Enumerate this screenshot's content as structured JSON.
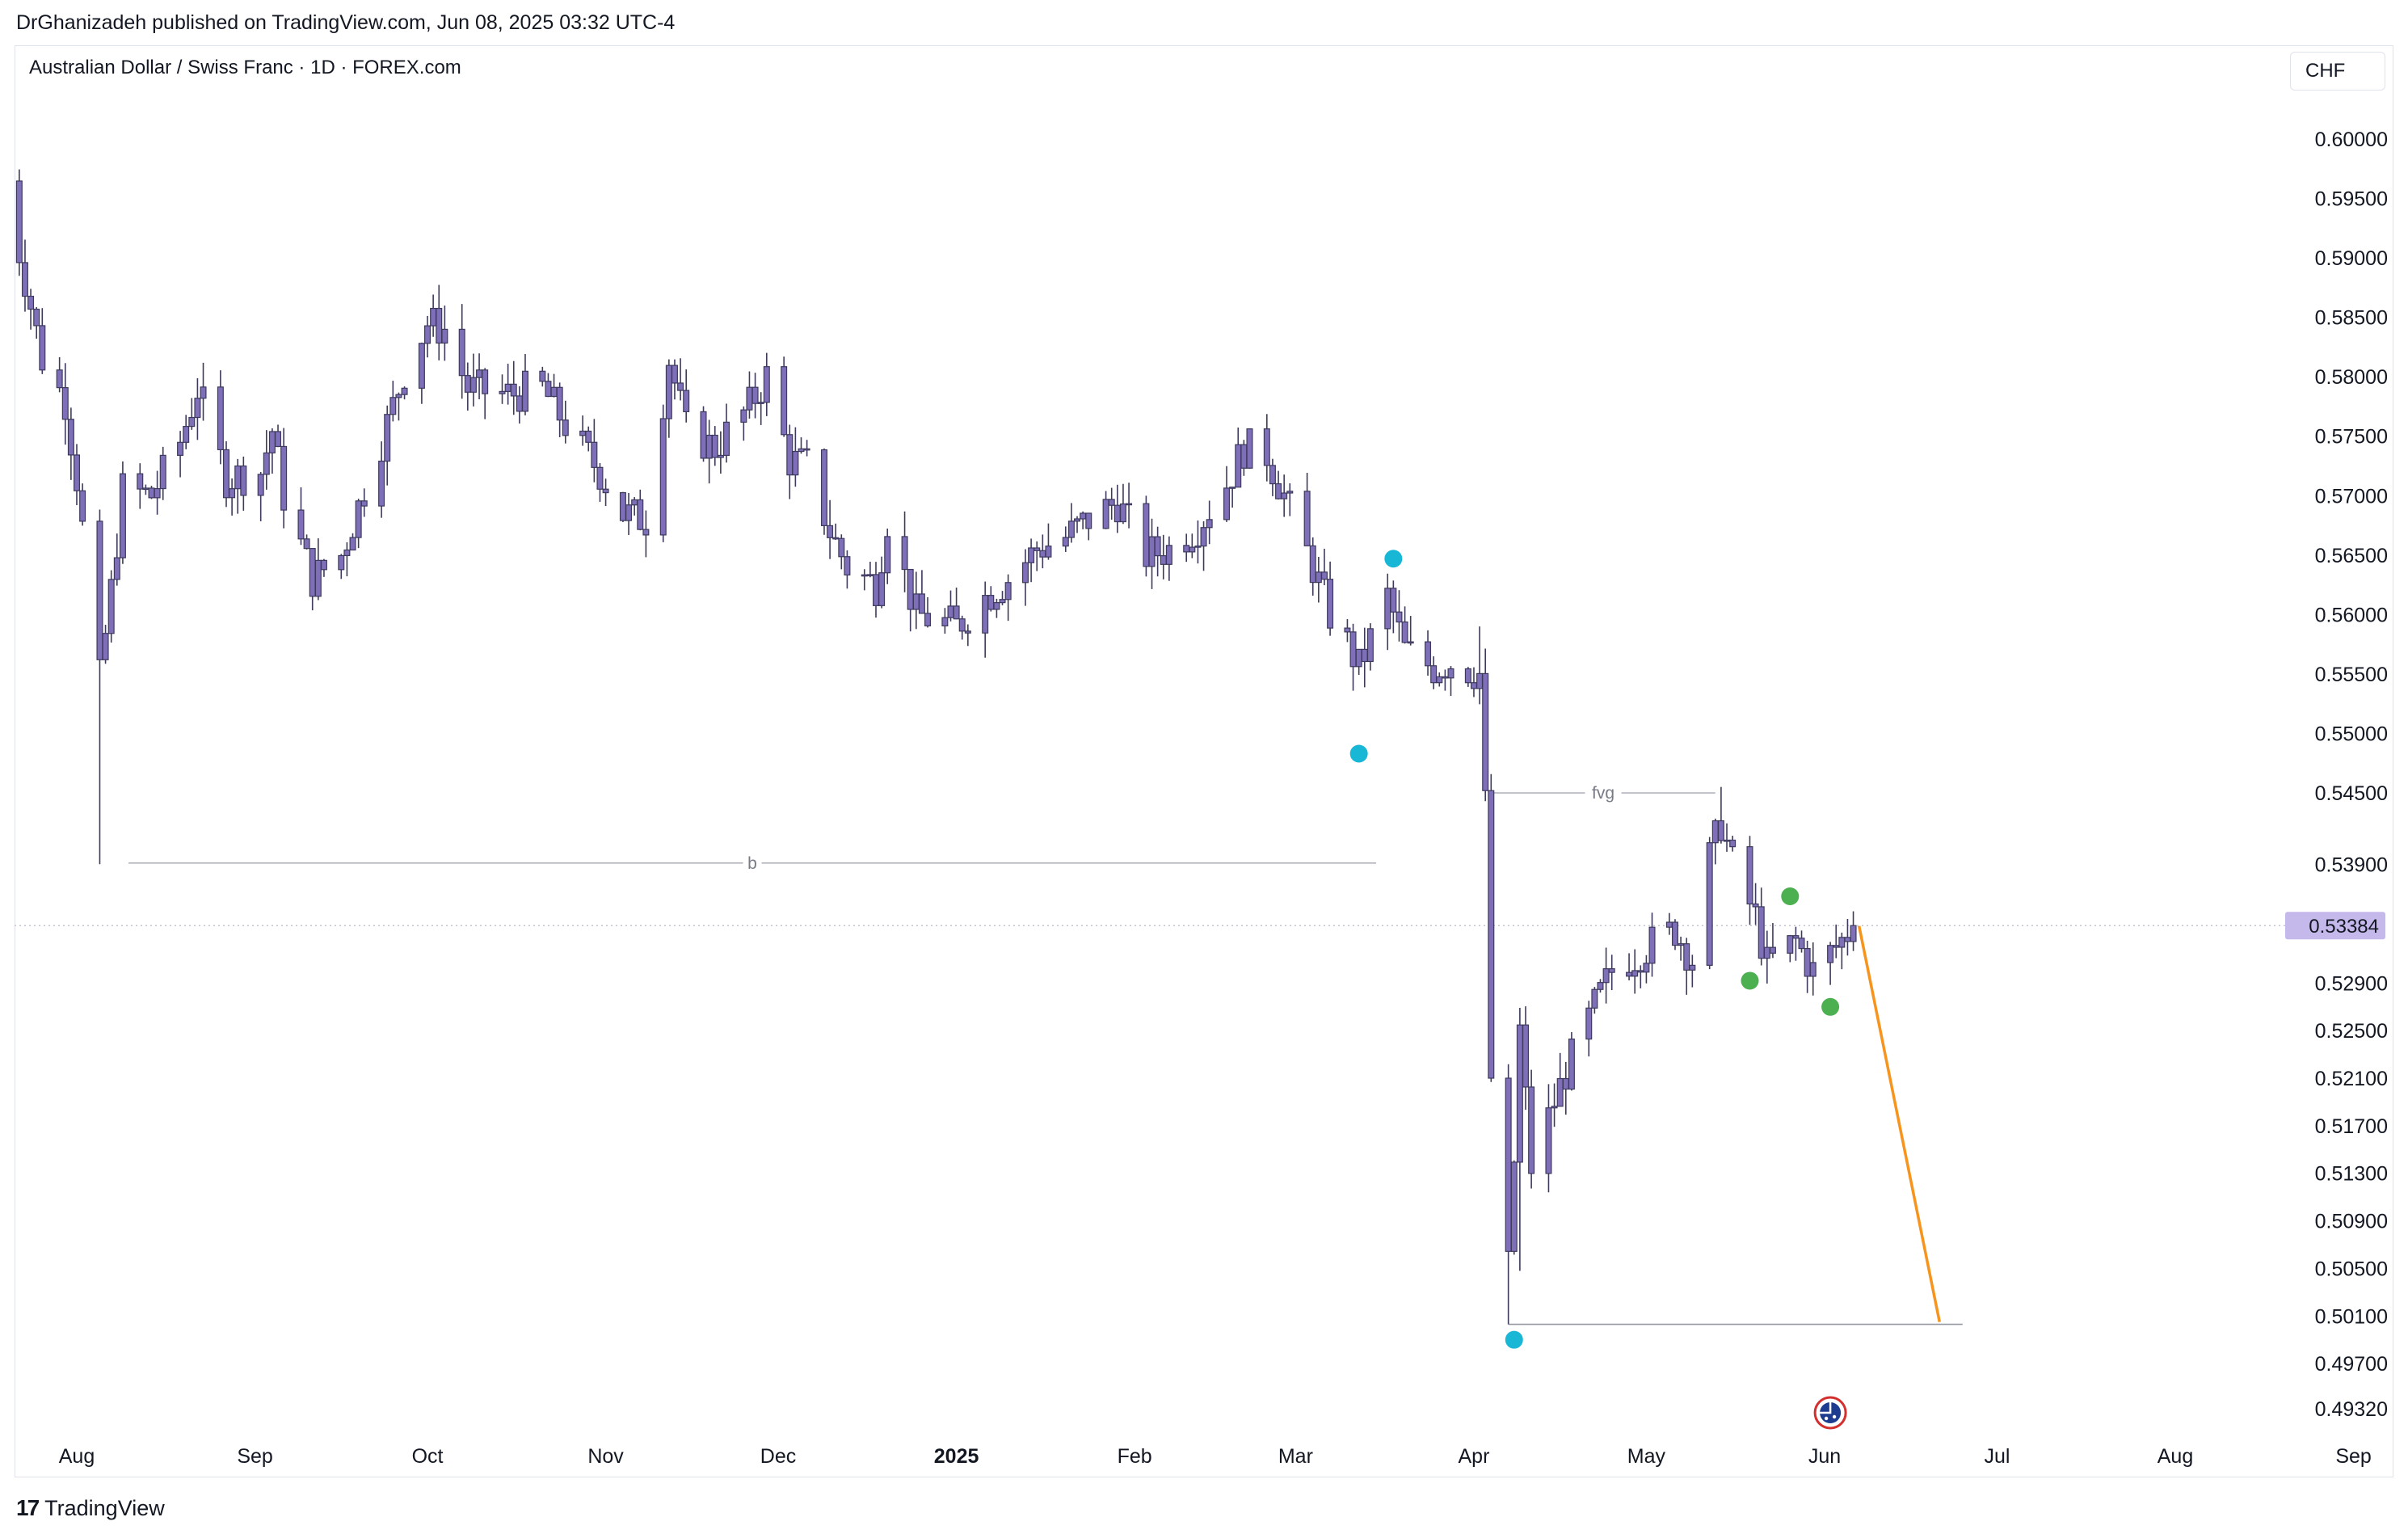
{
  "header": {
    "publisher_line": "DrGhanizadeh published on TradingView.com, Jun 08, 2025 03:32 UTC-4"
  },
  "symbol": {
    "title": "Australian Dollar / Swiss Franc · 1D · FOREX.com",
    "currency": "CHF"
  },
  "footer": {
    "brand": "TradingView",
    "logo_icon": "tradingview-logo-icon"
  },
  "colors": {
    "candle_body": "#7e6fb8",
    "candle_border": "#3d3a5c",
    "annotation_line": "#b2b5be",
    "marker_cyan": "#18b7d6",
    "marker_green": "#4caf50",
    "projection": "#f7941d",
    "last_price_badge": "#c5b9ec"
  },
  "chart_data": {
    "type": "candlestick",
    "symbol": "AUDCHF",
    "interval": "1D",
    "last_price": "0.53384",
    "y_range": [
      0.4932,
      0.6048
    ],
    "y_ticks": [
      "0.60000",
      "0.59500",
      "0.59000",
      "0.58500",
      "0.58000",
      "0.57500",
      "0.57000",
      "0.56500",
      "0.56000",
      "0.55500",
      "0.55000",
      "0.54500",
      "0.53900",
      "0.52900",
      "0.52500",
      "0.52100",
      "0.51700",
      "0.51300",
      "0.50900",
      "0.50500",
      "0.50100",
      "0.49700",
      "0.49320"
    ],
    "x_ticks": [
      {
        "label": "Aug",
        "date": "2024-08-01",
        "bold": false
      },
      {
        "label": "Sep",
        "date": "2024-09-01",
        "bold": false
      },
      {
        "label": "Oct",
        "date": "2024-10-01",
        "bold": false
      },
      {
        "label": "Nov",
        "date": "2024-11-01",
        "bold": false
      },
      {
        "label": "Dec",
        "date": "2024-12-01",
        "bold": false
      },
      {
        "label": "2025",
        "date": "2025-01-01",
        "bold": true
      },
      {
        "label": "Feb",
        "date": "2025-02-01",
        "bold": false
      },
      {
        "label": "Mar",
        "date": "2025-03-01",
        "bold": false
      },
      {
        "label": "Apr",
        "date": "2025-04-01",
        "bold": false
      },
      {
        "label": "May",
        "date": "2025-05-01",
        "bold": false
      },
      {
        "label": "Jun",
        "date": "2025-06-01",
        "bold": false
      },
      {
        "label": "Jul",
        "date": "2025-07-01",
        "bold": false
      },
      {
        "label": "Aug",
        "date": "2025-08-01",
        "bold": false
      },
      {
        "label": "Sep",
        "date": "2025-09-01",
        "bold": false
      }
    ],
    "waypoints": [
      [
        "2024-07-19",
        0.5965
      ],
      [
        "2024-07-22",
        0.5905
      ],
      [
        "2024-07-26",
        0.5815
      ],
      [
        "2024-07-30",
        0.578
      ],
      [
        "2024-08-01",
        0.5715
      ],
      [
        "2024-08-05",
        0.5545
      ],
      [
        "2024-08-07",
        0.562
      ],
      [
        "2024-08-09",
        0.5705
      ],
      [
        "2024-08-14",
        0.57
      ],
      [
        "2024-08-19",
        0.5745
      ],
      [
        "2024-08-22",
        0.579
      ],
      [
        "2024-08-27",
        0.5715
      ],
      [
        "2024-09-02",
        0.572
      ],
      [
        "2024-09-04",
        0.5755
      ],
      [
        "2024-09-06",
        0.57
      ],
      [
        "2024-09-11",
        0.563
      ],
      [
        "2024-09-16",
        0.565
      ],
      [
        "2024-09-20",
        0.5705
      ],
      [
        "2024-09-24",
        0.576
      ],
      [
        "2024-09-27",
        0.5805
      ],
      [
        "2024-10-01",
        0.5845
      ],
      [
        "2024-10-04",
        0.584
      ],
      [
        "2024-10-08",
        0.579
      ],
      [
        "2024-10-15",
        0.5785
      ],
      [
        "2024-10-21",
        0.579
      ],
      [
        "2024-10-25",
        0.576
      ],
      [
        "2024-10-31",
        0.572
      ],
      [
        "2024-11-04",
        0.5685
      ],
      [
        "2024-11-08",
        0.568
      ],
      [
        "2024-11-12",
        0.5815
      ],
      [
        "2024-11-15",
        0.5755
      ],
      [
        "2024-11-20",
        0.574
      ],
      [
        "2024-11-26",
        0.5775
      ],
      [
        "2024-11-29",
        0.58
      ],
      [
        "2024-12-03",
        0.573
      ],
      [
        "2024-12-06",
        0.5725
      ],
      [
        "2024-12-10",
        0.567
      ],
      [
        "2024-12-13",
        0.564
      ],
      [
        "2024-12-18",
        0.5625
      ],
      [
        "2024-12-20",
        0.568
      ],
      [
        "2024-12-25",
        0.56
      ],
      [
        "2025-01-01",
        0.559
      ],
      [
        "2025-01-06",
        0.5615
      ],
      [
        "2025-01-10",
        0.563
      ],
      [
        "2025-01-15",
        0.5655
      ],
      [
        "2025-01-20",
        0.5665
      ],
      [
        "2025-01-24",
        0.568
      ],
      [
        "2025-01-29",
        0.5695
      ],
      [
        "2025-02-03",
        0.565
      ],
      [
        "2025-02-07",
        0.5655
      ],
      [
        "2025-02-12",
        0.5675
      ],
      [
        "2025-02-17",
        0.571
      ],
      [
        "2025-02-20",
        0.574
      ],
      [
        "2025-02-24",
        0.5735
      ],
      [
        "2025-02-27",
        0.57
      ],
      [
        "2025-03-04",
        0.564
      ],
      [
        "2025-03-07",
        0.56
      ],
      [
        "2025-03-10",
        0.5575
      ],
      [
        "2025-03-12",
        0.5555
      ],
      [
        "2025-03-17",
        0.5615
      ],
      [
        "2025-03-20",
        0.557
      ],
      [
        "2025-03-25",
        0.5555
      ],
      [
        "2025-03-28",
        0.556
      ],
      [
        "2025-04-02",
        0.555
      ],
      [
        "2025-04-03",
        0.544
      ],
      [
        "2025-04-04",
        0.521
      ],
      [
        "2025-04-07",
        0.505
      ],
      [
        "2025-04-08",
        0.514
      ],
      [
        "2025-04-09",
        0.525
      ],
      [
        "2025-04-11",
        0.5135
      ],
      [
        "2025-04-15",
        0.519
      ],
      [
        "2025-04-17",
        0.5215
      ],
      [
        "2025-04-22",
        0.527
      ],
      [
        "2025-04-25",
        0.53
      ],
      [
        "2025-05-01",
        0.532
      ],
      [
        "2025-05-06",
        0.5335
      ],
      [
        "2025-05-09",
        0.531
      ],
      [
        "2025-05-12",
        0.5395
      ],
      [
        "2025-05-14",
        0.5425
      ],
      [
        "2025-05-16",
        0.539
      ],
      [
        "2025-05-20",
        0.5345
      ],
      [
        "2025-05-22",
        0.5305
      ],
      [
        "2025-05-27",
        0.5325
      ],
      [
        "2025-05-30",
        0.53
      ],
      [
        "2025-06-03",
        0.532
      ],
      [
        "2025-06-06",
        0.53384
      ]
    ],
    "annotations": {
      "b_line": {
        "label": "b",
        "price": 0.5391,
        "from": "2024-08-10",
        "to": "2025-03-15"
      },
      "fvg_line": {
        "label": "fvg",
        "price": 0.545,
        "from": "2025-04-04",
        "to": "2025-05-13"
      },
      "support_line": {
        "price": 0.5003,
        "from": "2025-04-07",
        "to": "2025-06-25"
      },
      "projection": {
        "from_date": "2025-06-07",
        "from_price": 0.5338,
        "to_date": "2025-06-21",
        "to_price": 0.5005
      },
      "markers": [
        {
          "color": "cyan",
          "date": "2025-03-18",
          "price": 0.5647
        },
        {
          "color": "cyan",
          "date": "2025-03-12",
          "price": 0.5483
        },
        {
          "color": "cyan",
          "date": "2025-04-08",
          "price": 0.499
        },
        {
          "color": "green",
          "date": "2025-05-26",
          "price": 0.5363
        },
        {
          "color": "green",
          "date": "2025-05-19",
          "price": 0.5292
        },
        {
          "color": "green",
          "date": "2025-06-02",
          "price": 0.527
        }
      ],
      "event_icon": {
        "name": "australia-flag-icon",
        "date": "2025-06-02"
      }
    }
  }
}
